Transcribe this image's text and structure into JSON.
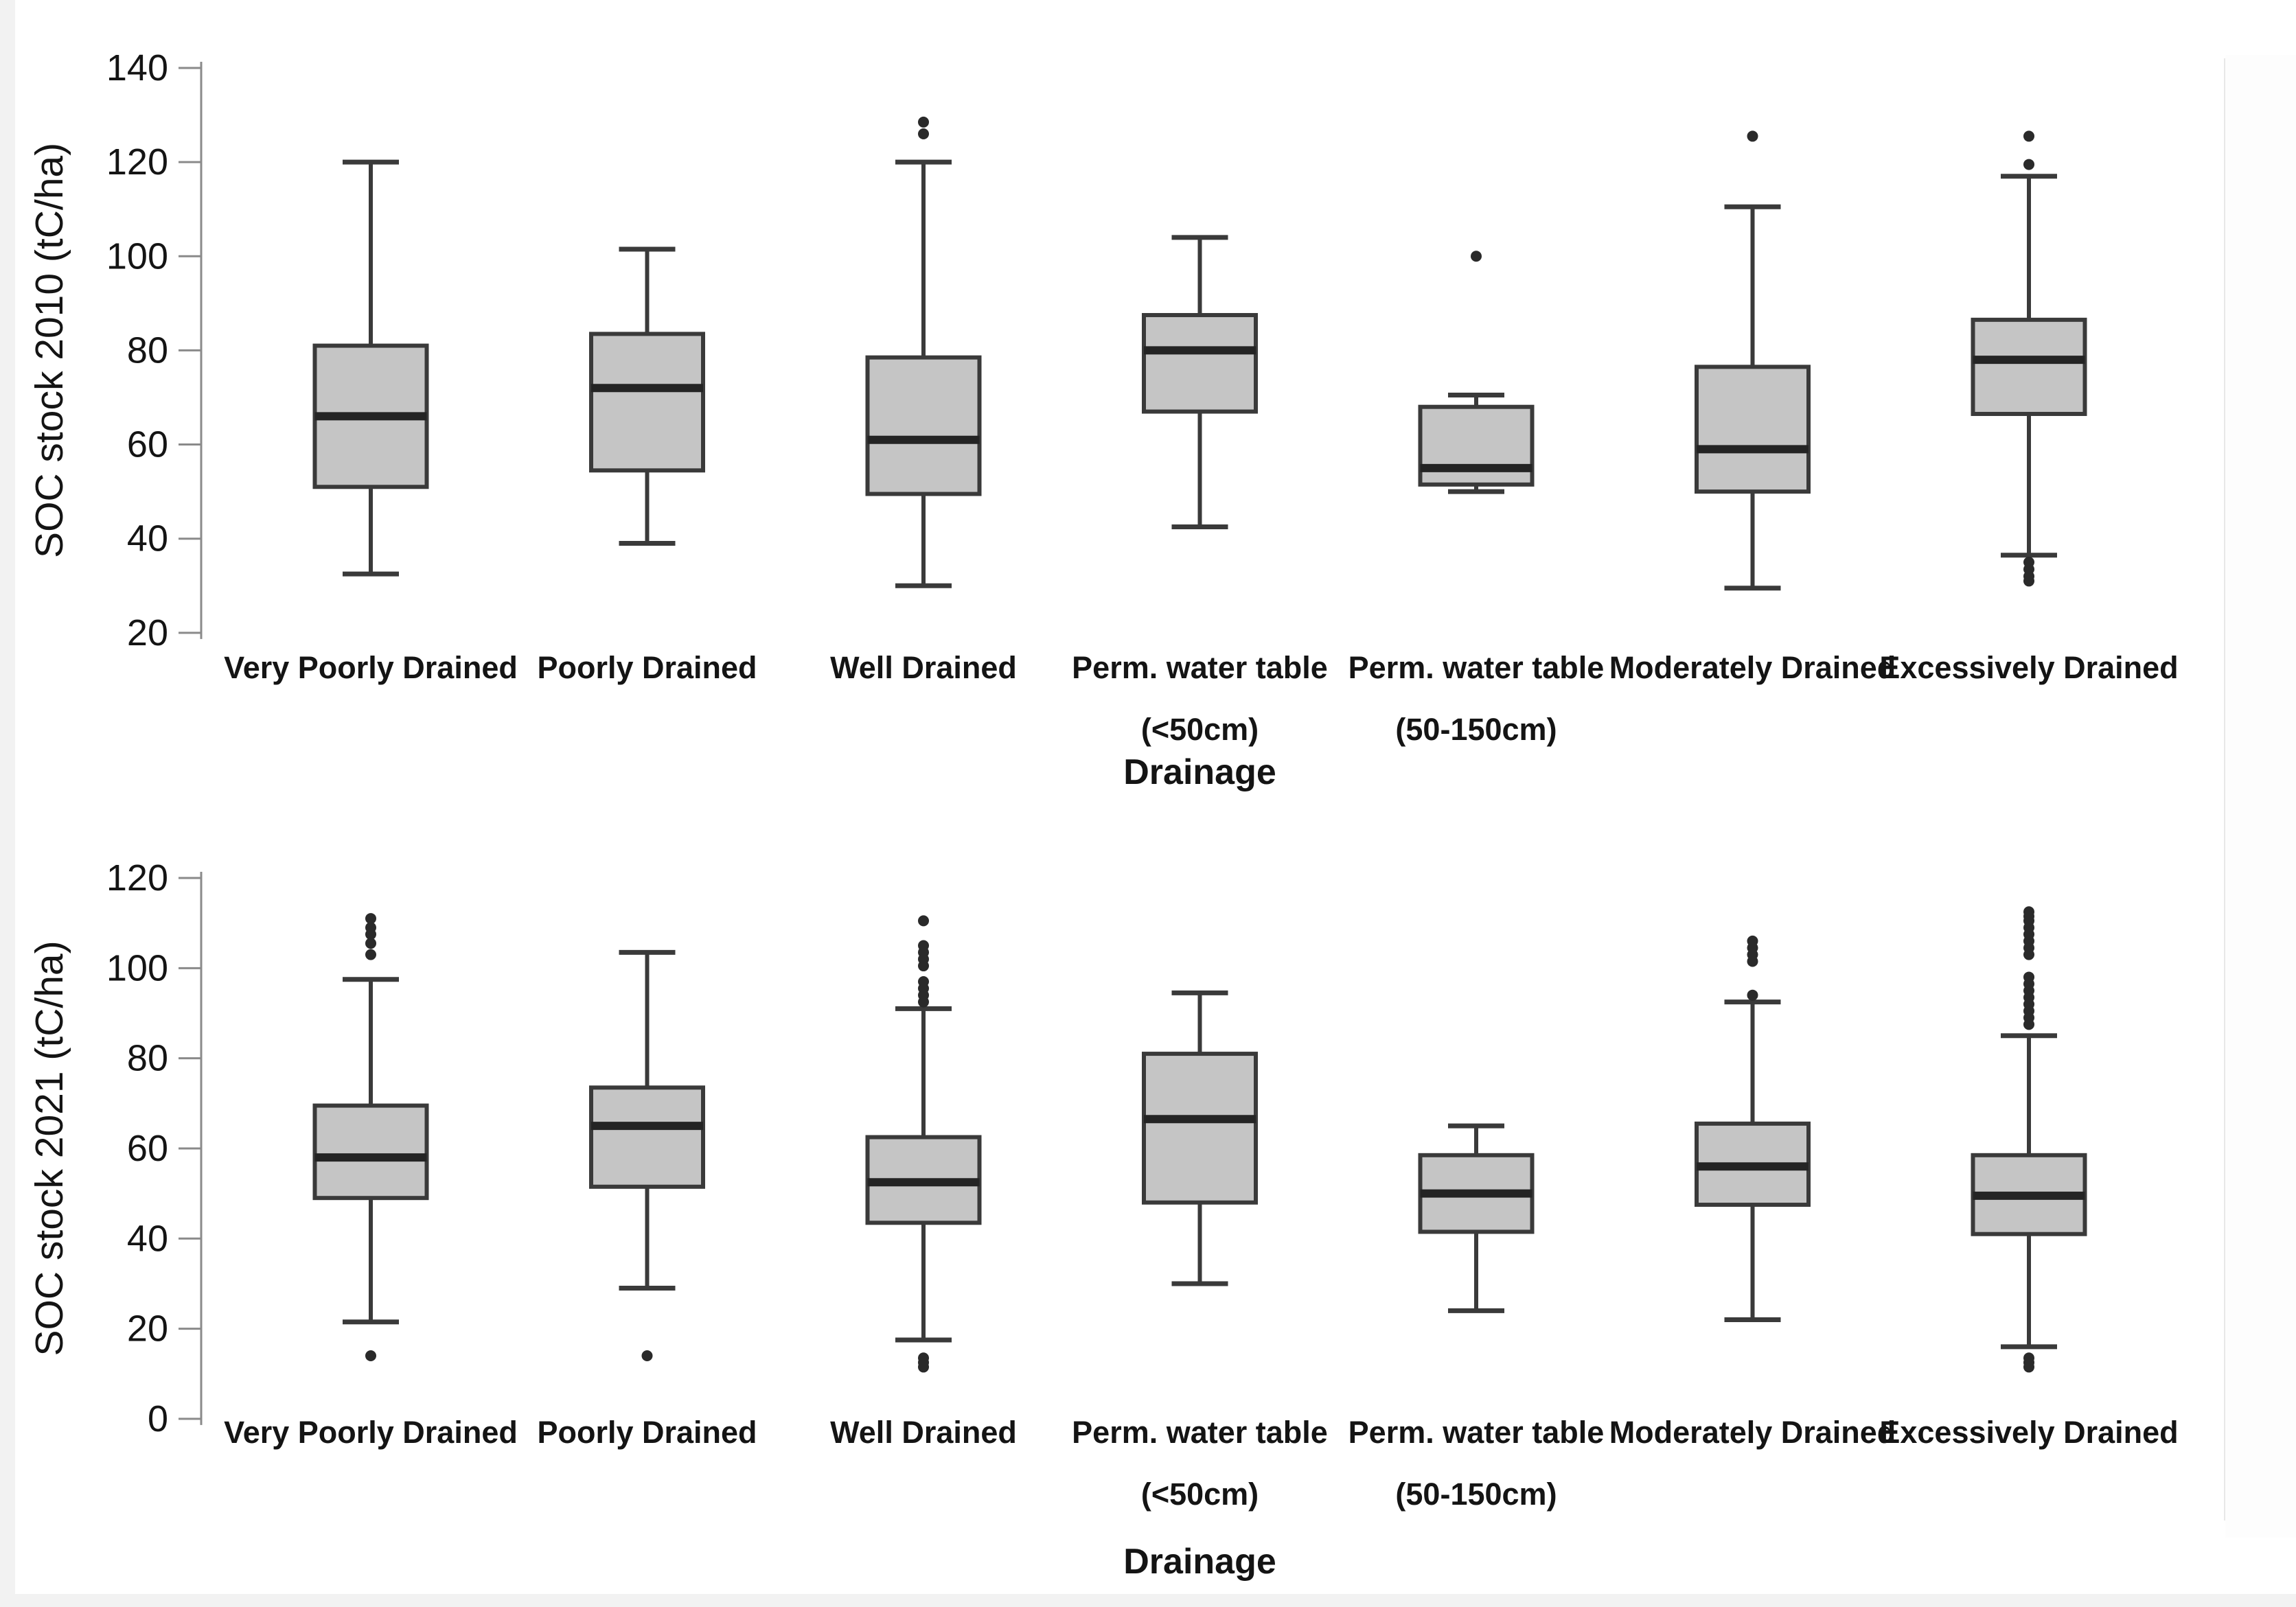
{
  "figure": {
    "kind": "two stacked box-plot panels",
    "x_axis_title": "Drainage"
  },
  "colors": {
    "background": "#ffffff",
    "box_fill": "#c5c5c5",
    "box_edge": "#3a3a3a",
    "median": "#242424",
    "whisker": "#3a3a3a",
    "outlier": "#2a2a2a",
    "axis": "#8a8a8a",
    "text": "#141414",
    "edge_strip": "#f2f2f2",
    "faint_right_line": "#e8e8e8"
  },
  "chart_data": [
    {
      "type": "boxplot",
      "title": "",
      "ylabel": "SOC stock 2010 (tC/ha)",
      "xlabel": "Drainage",
      "ylim": [
        20,
        140
      ],
      "yticks": [
        140,
        120,
        100,
        80,
        60,
        40,
        20
      ],
      "grid": false,
      "categories": [
        "Very Poorly Drained",
        "Poorly Drained",
        "Well Drained",
        "Perm. water table (<50cm)",
        "Perm. water table (50-150cm)",
        "Moderately Drained",
        "Excessively Drained"
      ],
      "series": [
        {
          "category_lines": [
            "Very Poorly Drained"
          ],
          "whisker_low": 32.5,
          "q1": 51,
          "median": 66,
          "q3": 81,
          "whisker_high": 120,
          "outliers": []
        },
        {
          "category_lines": [
            "Poorly Drained"
          ],
          "whisker_low": 39,
          "q1": 54.5,
          "median": 72,
          "q3": 83.5,
          "whisker_high": 101.5,
          "outliers": []
        },
        {
          "category_lines": [
            "Well Drained"
          ],
          "whisker_low": 30,
          "q1": 49.5,
          "median": 61,
          "q3": 78.5,
          "whisker_high": 120,
          "outliers": [
            128.5,
            126
          ]
        },
        {
          "category_lines": [
            "Perm. water table",
            "(<50cm)"
          ],
          "whisker_low": 42.5,
          "q1": 67,
          "median": 80,
          "q3": 87.5,
          "whisker_high": 104,
          "outliers": []
        },
        {
          "category_lines": [
            "Perm. water table",
            "(50-150cm)"
          ],
          "whisker_low": 50,
          "q1": 51.5,
          "median": 55,
          "q3": 68,
          "whisker_high": 70.5,
          "outliers": [
            100
          ]
        },
        {
          "category_lines": [
            "Moderately Drained"
          ],
          "whisker_low": 29.5,
          "q1": 50,
          "median": 59,
          "q3": 76.5,
          "whisker_high": 110.5,
          "outliers": [
            125.5
          ]
        },
        {
          "category_lines": [
            "Excessively Drained"
          ],
          "whisker_low": 36.5,
          "q1": 66.5,
          "median": 78,
          "q3": 86.5,
          "whisker_high": 117,
          "outliers": [
            125.5,
            119.5,
            35,
            33.5,
            32,
            31
          ]
        }
      ]
    },
    {
      "type": "boxplot",
      "title": "",
      "ylabel": "SOC stock 2021 (tC/ha)",
      "xlabel": "Drainage",
      "ylim": [
        0,
        120
      ],
      "yticks": [
        120,
        100,
        80,
        60,
        40,
        20,
        0
      ],
      "grid": false,
      "categories": [
        "Very Poorly Drained",
        "Poorly Drained",
        "Well Drained",
        "Perm. water table (<50cm)",
        "Perm. water table (50-150cm)",
        "Moderately Drained",
        "Excessively Drained"
      ],
      "series": [
        {
          "category_lines": [
            "Very Poorly Drained"
          ],
          "whisker_low": 21.5,
          "q1": 49,
          "median": 58,
          "q3": 69.5,
          "whisker_high": 97.5,
          "outliers": [
            111,
            109,
            107.5,
            105.5,
            103,
            14
          ]
        },
        {
          "category_lines": [
            "Poorly Drained"
          ],
          "whisker_low": 29,
          "q1": 51.5,
          "median": 65,
          "q3": 73.5,
          "whisker_high": 103.5,
          "outliers": [
            14
          ]
        },
        {
          "category_lines": [
            "Well Drained"
          ],
          "whisker_low": 17.5,
          "q1": 43.5,
          "median": 52.5,
          "q3": 62.5,
          "whisker_high": 91,
          "outliers": [
            110.5,
            105,
            103.5,
            102,
            100.5,
            97,
            95.5,
            94,
            92.5,
            13.5,
            12.5,
            11.5
          ]
        },
        {
          "category_lines": [
            "Perm. water table",
            "(<50cm)"
          ],
          "whisker_low": 30,
          "q1": 48,
          "median": 66.5,
          "q3": 81,
          "whisker_high": 94.5,
          "outliers": []
        },
        {
          "category_lines": [
            "Perm. water table",
            "(50-150cm)"
          ],
          "whisker_low": 24,
          "q1": 41.5,
          "median": 50,
          "q3": 58.5,
          "whisker_high": 65,
          "outliers": []
        },
        {
          "category_lines": [
            "Moderately Drained"
          ],
          "whisker_low": 22,
          "q1": 47.5,
          "median": 56,
          "q3": 65.5,
          "whisker_high": 92.5,
          "outliers": [
            106,
            104.5,
            103,
            101.5,
            94
          ]
        },
        {
          "category_lines": [
            "Excessively Drained"
          ],
          "whisker_low": 16,
          "q1": 41,
          "median": 49.5,
          "q3": 58.5,
          "whisker_high": 85,
          "outliers": [
            112.5,
            111.5,
            110.5,
            109,
            107.5,
            106,
            104.5,
            103,
            98,
            96.5,
            95,
            93.5,
            92,
            90.5,
            89,
            87.5,
            13.5,
            12.5,
            11.5
          ]
        }
      ]
    }
  ]
}
